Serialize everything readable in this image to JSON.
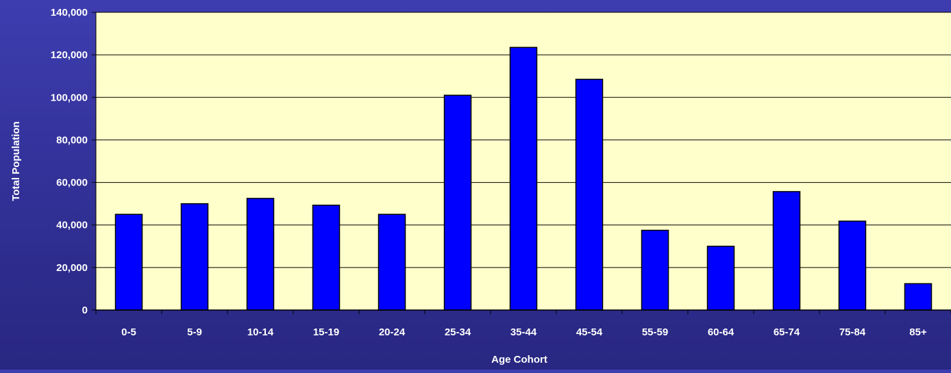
{
  "chart_data": {
    "type": "bar",
    "title": "",
    "xlabel": "Age Cohort",
    "ylabel": "Total Population",
    "categories": [
      "0-5",
      "5-9",
      "10-14",
      "15-19",
      "20-24",
      "25-34",
      "35-44",
      "45-54",
      "55-59",
      "60-64",
      "65-74",
      "75-84",
      "85+"
    ],
    "values": [
      45000,
      50000,
      52500,
      49300,
      45000,
      101000,
      123500,
      108500,
      37500,
      30000,
      55700,
      41800,
      12400
    ],
    "ylim": [
      0,
      140000
    ],
    "yticks": [
      0,
      20000,
      40000,
      60000,
      80000,
      100000,
      120000,
      140000
    ],
    "ytick_labels": [
      "0",
      "20,000",
      "40,000",
      "60,000",
      "80,000",
      "100,000",
      "120,000",
      "140,000"
    ],
    "grid": true,
    "legend": "none",
    "colors": {
      "bar": "#0000ff",
      "bar_border": "#000000",
      "plot_background": "#ffffcc",
      "gridline": "#000000",
      "text": "#ffffff"
    }
  }
}
